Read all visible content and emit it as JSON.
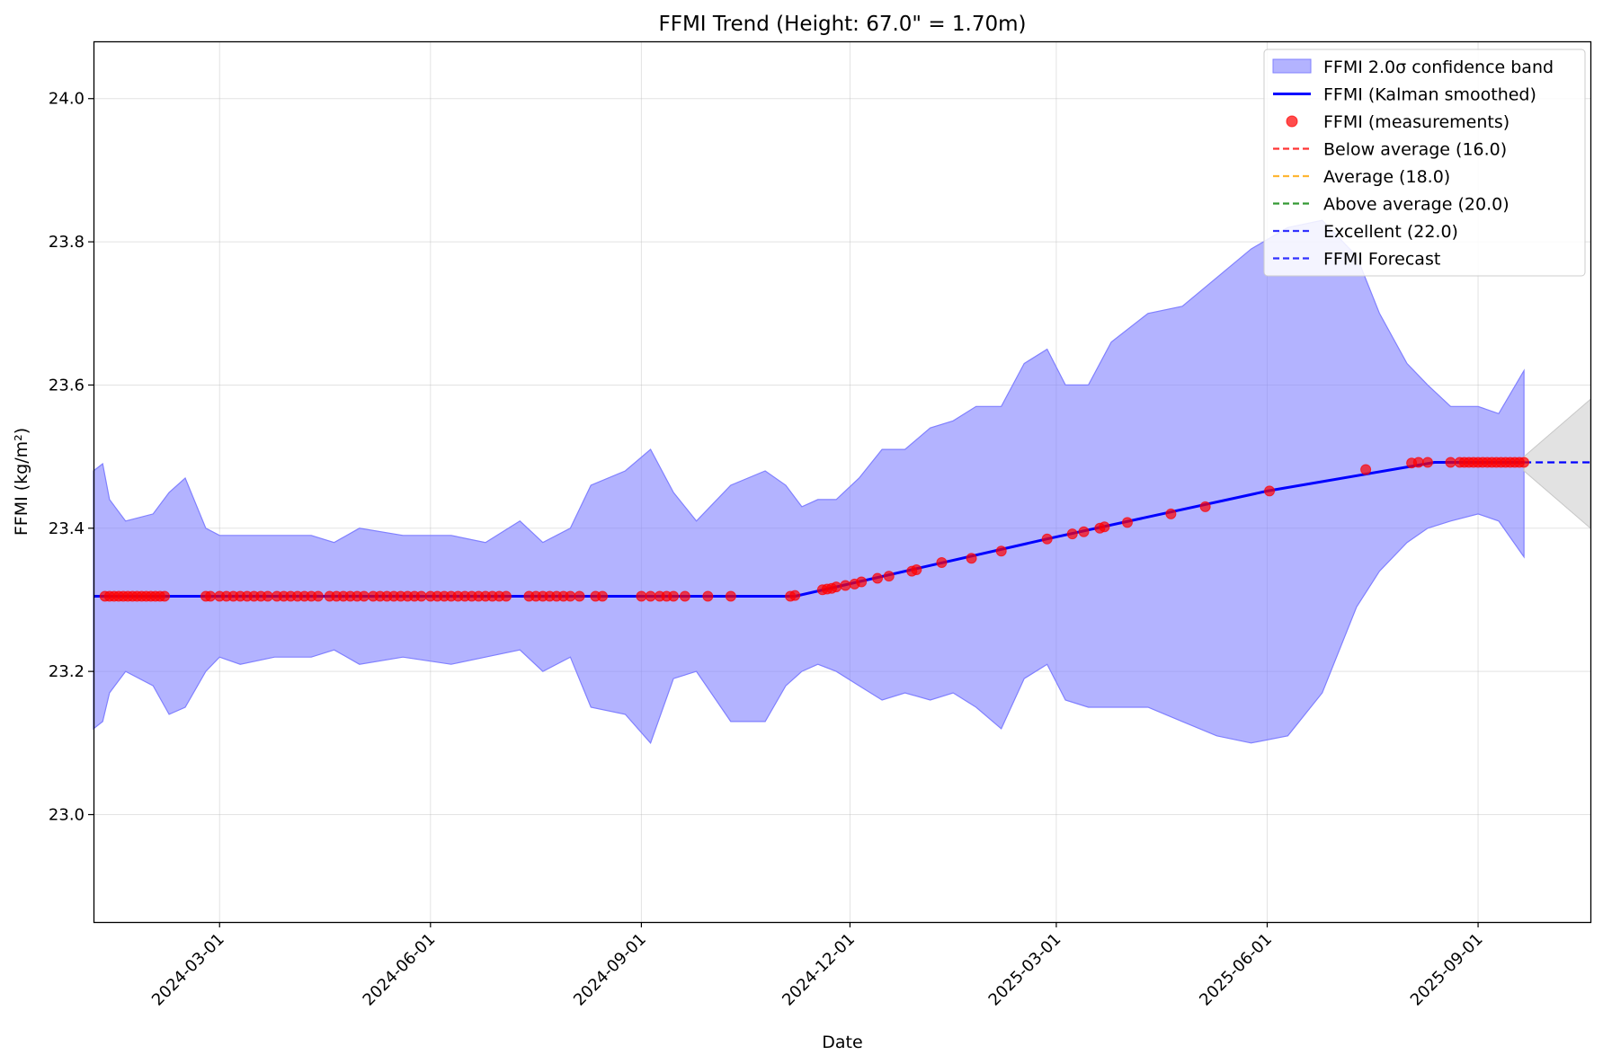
{
  "chart_data": {
    "type": "line",
    "title": "FFMI Trend (Height: 67.0\" = 1.70m)",
    "xlabel": "Date",
    "ylabel": "FFMI (kg/m²)",
    "xlim": [
      "2024-01-06",
      "2025-10-20"
    ],
    "ylim": [
      22.85,
      24.08
    ],
    "x_ticks": [
      "2024-03-01",
      "2024-06-01",
      "2024-09-01",
      "2024-12-01",
      "2025-03-01",
      "2025-06-01",
      "2025-09-01"
    ],
    "y_ticks": [
      "23.0",
      "23.2",
      "23.4",
      "23.6",
      "23.8",
      "24.0"
    ],
    "grid": true,
    "legend_position": "top-right",
    "colors": {
      "band": "#8080ff",
      "smoothed": "#0000ff",
      "measurements": "#ff0000",
      "below_average": "#ff0000",
      "average": "#ffa500",
      "above_average": "#008000",
      "excellent": "#0000ff",
      "forecast": "#0000ff",
      "forecast_band": "#d3d3d3"
    },
    "legend": [
      {
        "key": "band",
        "label": "FFMI 2.0σ confidence band",
        "kind": "patch"
      },
      {
        "key": "smoothed",
        "label": "FFMI (Kalman smoothed)",
        "kind": "line"
      },
      {
        "key": "measurements",
        "label": "FFMI (measurements)",
        "kind": "marker"
      },
      {
        "key": "below_average",
        "label": "Below average (16.0)",
        "kind": "dash"
      },
      {
        "key": "average",
        "label": "Average (18.0)",
        "kind": "dash"
      },
      {
        "key": "above_average",
        "label": "Above average (20.0)",
        "kind": "dash"
      },
      {
        "key": "excellent",
        "label": "Excellent (22.0)",
        "kind": "dash"
      },
      {
        "key": "forecast",
        "label": "FFMI Forecast",
        "kind": "dash"
      }
    ],
    "reference_lines": [
      {
        "name": "Below average",
        "value": 16.0
      },
      {
        "name": "Average",
        "value": 18.0
      },
      {
        "name": "Above average",
        "value": 20.0
      },
      {
        "name": "Excellent",
        "value": 22.0
      }
    ],
    "series": [
      {
        "name": "FFMI (Kalman smoothed)",
        "x": [
          "2024-01-06",
          "2024-11-07",
          "2025-02-25",
          "2025-06-01",
          "2025-08-13",
          "2025-09-21"
        ],
        "y": [
          23.305,
          23.305,
          23.385,
          23.452,
          23.492,
          23.492
        ]
      },
      {
        "name": "FFMI 2.0σ confidence band",
        "x": [
          "2024-01-06",
          "2024-01-10",
          "2024-01-13",
          "2024-01-20",
          "2024-02-01",
          "2024-02-08",
          "2024-02-15",
          "2024-02-24",
          "2024-03-01",
          "2024-03-10",
          "2024-03-25",
          "2024-04-10",
          "2024-04-20",
          "2024-05-01",
          "2024-05-20",
          "2024-06-10",
          "2024-06-25",
          "2024-07-10",
          "2024-07-20",
          "2024-08-01",
          "2024-08-10",
          "2024-08-25",
          "2024-09-05",
          "2024-09-15",
          "2024-09-25",
          "2024-10-10",
          "2024-10-25",
          "2024-11-03",
          "2024-11-10",
          "2024-11-17",
          "2024-11-25",
          "2024-12-05",
          "2024-12-15",
          "2024-12-25",
          "2025-01-05",
          "2025-01-15",
          "2025-01-25",
          "2025-02-05",
          "2025-02-15",
          "2025-02-25",
          "2025-03-05",
          "2025-03-15",
          "2025-03-25",
          "2025-04-10",
          "2025-04-25",
          "2025-05-10",
          "2025-05-25",
          "2025-06-10",
          "2025-06-25",
          "2025-07-10",
          "2025-07-20",
          "2025-08-01",
          "2025-08-10",
          "2025-08-20",
          "2025-09-01",
          "2025-09-10",
          "2025-09-21"
        ],
        "upper": [
          23.48,
          23.49,
          23.44,
          23.41,
          23.42,
          23.45,
          23.47,
          23.4,
          23.39,
          23.39,
          23.39,
          23.39,
          23.38,
          23.4,
          23.39,
          23.39,
          23.38,
          23.41,
          23.38,
          23.4,
          23.46,
          23.48,
          23.51,
          23.45,
          23.41,
          23.46,
          23.48,
          23.46,
          23.43,
          23.44,
          23.44,
          23.47,
          23.51,
          23.51,
          23.54,
          23.55,
          23.57,
          23.57,
          23.63,
          23.65,
          23.6,
          23.6,
          23.66,
          23.7,
          23.71,
          23.75,
          23.79,
          23.82,
          23.83,
          23.78,
          23.7,
          23.63,
          23.6,
          23.57,
          23.57,
          23.56,
          23.62
        ],
        "lower": [
          23.12,
          23.13,
          23.17,
          23.2,
          23.18,
          23.14,
          23.15,
          23.2,
          23.22,
          23.21,
          23.22,
          23.22,
          23.23,
          23.21,
          23.22,
          23.21,
          23.22,
          23.23,
          23.2,
          23.22,
          23.15,
          23.14,
          23.1,
          23.19,
          23.2,
          23.13,
          23.13,
          23.18,
          23.2,
          23.21,
          23.2,
          23.18,
          23.16,
          23.17,
          23.16,
          23.17,
          23.15,
          23.12,
          23.19,
          23.21,
          23.16,
          23.15,
          23.15,
          23.15,
          23.13,
          23.11,
          23.1,
          23.11,
          23.17,
          23.29,
          23.34,
          23.38,
          23.4,
          23.41,
          23.42,
          23.41,
          23.36
        ]
      },
      {
        "name": "FFMI Forecast",
        "x": [
          "2025-09-21",
          "2025-10-20"
        ],
        "y": [
          23.492,
          23.492
        ],
        "upper": [
          23.5,
          23.58
        ],
        "lower": [
          23.48,
          23.4
        ]
      },
      {
        "name": "FFMI (measurements)",
        "x": [
          "2024-01-11",
          "2024-01-13",
          "2024-01-15",
          "2024-01-17",
          "2024-01-19",
          "2024-01-21",
          "2024-01-23",
          "2024-01-25",
          "2024-01-27",
          "2024-01-29",
          "2024-01-31",
          "2024-02-02",
          "2024-02-04",
          "2024-02-06",
          "2024-02-24",
          "2024-02-26",
          "2024-03-01",
          "2024-03-04",
          "2024-03-07",
          "2024-03-10",
          "2024-03-13",
          "2024-03-16",
          "2024-03-19",
          "2024-03-22",
          "2024-03-26",
          "2024-03-29",
          "2024-04-01",
          "2024-04-04",
          "2024-04-07",
          "2024-04-10",
          "2024-04-13",
          "2024-04-18",
          "2024-04-21",
          "2024-04-24",
          "2024-04-27",
          "2024-04-30",
          "2024-05-03",
          "2024-05-07",
          "2024-05-10",
          "2024-05-13",
          "2024-05-16",
          "2024-05-19",
          "2024-05-22",
          "2024-05-25",
          "2024-05-28",
          "2024-06-01",
          "2024-06-04",
          "2024-06-07",
          "2024-06-10",
          "2024-06-13",
          "2024-06-16",
          "2024-06-19",
          "2024-06-22",
          "2024-06-25",
          "2024-06-28",
          "2024-07-01",
          "2024-07-04",
          "2024-07-14",
          "2024-07-17",
          "2024-07-20",
          "2024-07-23",
          "2024-07-26",
          "2024-07-29",
          "2024-08-01",
          "2024-08-05",
          "2024-08-12",
          "2024-08-15",
          "2024-09-01",
          "2024-09-05",
          "2024-09-09",
          "2024-09-12",
          "2024-09-15",
          "2024-09-20",
          "2024-09-30",
          "2024-10-10",
          "2024-11-05",
          "2024-11-07",
          "2024-11-19",
          "2024-11-21",
          "2024-11-23",
          "2024-11-25",
          "2024-11-29",
          "2024-12-03",
          "2024-12-06",
          "2024-12-13",
          "2024-12-18",
          "2024-12-28",
          "2024-12-30",
          "2025-01-10",
          "2025-01-23",
          "2025-02-05",
          "2025-02-25",
          "2025-03-08",
          "2025-03-13",
          "2025-03-20",
          "2025-03-22",
          "2025-04-01",
          "2025-04-20",
          "2025-05-05",
          "2025-06-02",
          "2025-07-14",
          "2025-08-03",
          "2025-08-06",
          "2025-08-10",
          "2025-08-20",
          "2025-08-24",
          "2025-08-26",
          "2025-08-28",
          "2025-08-30",
          "2025-09-01",
          "2025-09-03",
          "2025-09-05",
          "2025-09-07",
          "2025-09-09",
          "2025-09-11",
          "2025-09-13",
          "2025-09-15",
          "2025-09-17",
          "2025-09-19",
          "2025-09-21"
        ],
        "y": [
          23.305,
          23.305,
          23.305,
          23.305,
          23.305,
          23.305,
          23.305,
          23.305,
          23.305,
          23.305,
          23.305,
          23.305,
          23.305,
          23.305,
          23.305,
          23.305,
          23.305,
          23.305,
          23.305,
          23.305,
          23.305,
          23.305,
          23.305,
          23.305,
          23.305,
          23.305,
          23.305,
          23.305,
          23.305,
          23.305,
          23.305,
          23.305,
          23.305,
          23.305,
          23.305,
          23.305,
          23.305,
          23.305,
          23.305,
          23.305,
          23.305,
          23.305,
          23.305,
          23.305,
          23.305,
          23.305,
          23.305,
          23.305,
          23.305,
          23.305,
          23.305,
          23.305,
          23.305,
          23.305,
          23.305,
          23.305,
          23.305,
          23.305,
          23.305,
          23.305,
          23.305,
          23.305,
          23.305,
          23.305,
          23.305,
          23.305,
          23.305,
          23.305,
          23.305,
          23.305,
          23.305,
          23.305,
          23.305,
          23.305,
          23.305,
          23.305,
          23.306,
          23.314,
          23.315,
          23.316,
          23.318,
          23.32,
          23.322,
          23.325,
          23.33,
          23.333,
          23.34,
          23.342,
          23.352,
          23.358,
          23.368,
          23.385,
          23.392,
          23.395,
          23.4,
          23.402,
          23.408,
          23.42,
          23.43,
          23.452,
          23.482,
          23.491,
          23.492,
          23.492,
          23.492,
          23.492,
          23.492,
          23.492,
          23.492,
          23.492,
          23.492,
          23.492,
          23.492,
          23.492,
          23.492,
          23.492,
          23.492,
          23.492,
          23.492,
          23.492
        ]
      }
    ]
  }
}
